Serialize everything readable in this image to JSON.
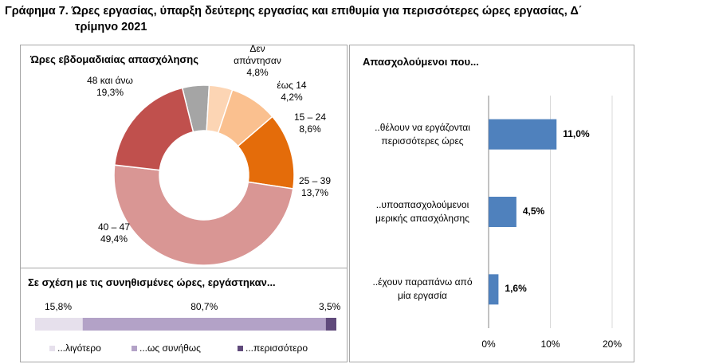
{
  "title": {
    "line1": "Γράφημα 7. Ώρες εργασίας, ύπαρξη δεύτερης εργασίας και επιθυμία για περισσότερες ώρες εργασίας, Δ΄",
    "line2": "τρίμηνο 2021"
  },
  "chart_data": [
    {
      "type": "pie",
      "title": "Ώρες εβδομαδιαίας απασχόλησης",
      "slices": [
        {
          "label_lines": [
            "Δεν",
            "απάντησαν"
          ],
          "value": 4.8,
          "value_label": "4,8%",
          "color": "#a5a5a5"
        },
        {
          "label_lines": [
            "έως 14"
          ],
          "value": 4.2,
          "value_label": "4,2%",
          "color": "#fcd5b4"
        },
        {
          "label_lines": [
            "15 – 24"
          ],
          "value": 8.6,
          "value_label": "8,6%",
          "color": "#fac08f"
        },
        {
          "label_lines": [
            "25 – 39"
          ],
          "value": 13.7,
          "value_label": "13,7%",
          "color": "#e46c0a"
        },
        {
          "label_lines": [
            "40 – 47"
          ],
          "value": 49.4,
          "value_label": "49,4%",
          "color": "#d99694"
        },
        {
          "label_lines": [
            "48 και άνω"
          ],
          "value": 19.3,
          "value_label": "19,3%",
          "color": "#c0504d"
        }
      ]
    },
    {
      "type": "bar",
      "orientation": "horizontal",
      "stacked": true,
      "title": "Σε σχέση με τις συνηθισμένες ώρες, εργάστηκαν...",
      "series": [
        {
          "name": "...λιγότερο",
          "value": 15.8,
          "value_label": "15,8%",
          "color": "#e6e0ec"
        },
        {
          "name": "...ως συνήθως",
          "value": 80.7,
          "value_label": "80,7%",
          "color": "#b3a2c7"
        },
        {
          "name": "...περισσότερο",
          "value": 3.5,
          "value_label": "3,5%",
          "color": "#604a7b"
        }
      ],
      "legend_position": "bottom"
    },
    {
      "type": "bar",
      "orientation": "horizontal",
      "title": "Απασχολούμενοι που...",
      "categories": [
        [
          "..θέλουν να εργάζονται",
          "περισσότερες ώρες"
        ],
        [
          "..υποαπασχολούμενοι",
          "μερικής απασχόλησης"
        ],
        [
          "..έχουν παραπάνω από",
          "μία εργασία"
        ]
      ],
      "values": [
        11.0,
        4.5,
        1.6
      ],
      "value_labels": [
        "11,0%",
        "4,5%",
        "1,6%"
      ],
      "xlim": [
        0,
        20
      ],
      "xticks": [
        0,
        10,
        20
      ],
      "xtick_labels": [
        "0%",
        "10%",
        "20%"
      ],
      "grid": true,
      "bar_color": "#4f81bd"
    }
  ]
}
